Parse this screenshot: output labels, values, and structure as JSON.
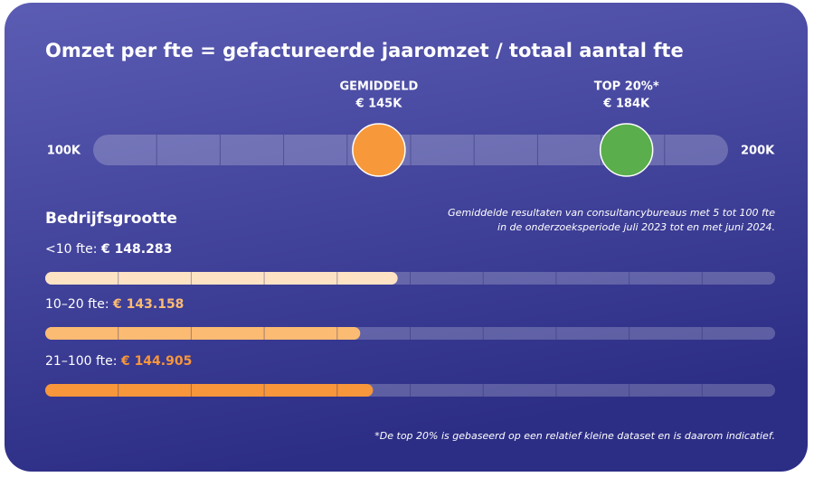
{
  "title": "Omzet per fte = gefactureerde jaaromzet / totaal aantal fte",
  "chart_data": [
    {
      "type": "marker-scale",
      "xlim": [
        100000,
        200000
      ],
      "xticks": [
        {
          "value": 100000,
          "label": "100K"
        },
        {
          "value": 200000,
          "label": "200K"
        }
      ],
      "series": [
        {
          "name": "GEMIDDELD",
          "color": "#f7993a",
          "values": [
            145000
          ],
          "value_labels": [
            "€ 145K"
          ]
        },
        {
          "name": "TOP 20%*",
          "color": "#5aae4c",
          "values": [
            184000
          ],
          "value_labels": [
            "€ 184K"
          ]
        }
      ]
    },
    {
      "type": "bar",
      "title": "Bedrijfsgrootte",
      "subtitle": [
        "Gemiddelde resultaten van consultancybureaus met 5 tot 100 fte",
        "in de onderzoeksperiode juli 2023 tot en met juni 2024."
      ],
      "categories": [
        "<10 fte:",
        "10–20 fte:",
        "21–100 fte:"
      ],
      "values": [
        148283,
        143158,
        144905
      ],
      "value_labels": [
        "€ 148.283",
        "€ 143.158",
        "€ 144.905"
      ],
      "colors": [
        "#fde3c4",
        "#fbbb72",
        "#f7963a"
      ],
      "label_colors": [
        "#ffffff",
        "#fbbb72",
        "#f7963a"
      ],
      "xlim": [
        100000,
        200000
      ]
    }
  ],
  "footnote": "*De top 20% is gebaseerd op een relatief kleine dataset en is daarom indicatief."
}
